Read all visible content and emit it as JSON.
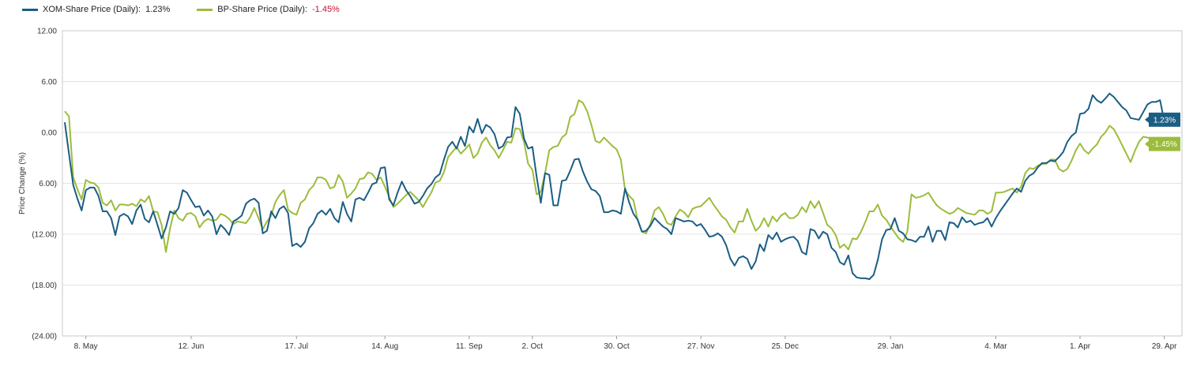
{
  "legend": {
    "xom": {
      "label": "XOM-Share Price (Daily):",
      "value": "1.23%"
    },
    "bp": {
      "label": "BP-Share Price (Daily):",
      "value": "-1.45%"
    }
  },
  "chart_data": {
    "type": "line",
    "title": "",
    "ylabel": "Price Change (%)",
    "ylim": [
      -24,
      12
    ],
    "yticks": [
      {
        "value": 12,
        "label": "12.00"
      },
      {
        "value": 6,
        "label": "6.00"
      },
      {
        "value": 0,
        "label": "0.00"
      },
      {
        "value": -6,
        "label": "6.00)"
      },
      {
        "value": -12,
        "label": "(12.00)"
      },
      {
        "value": -18,
        "label": "(18.00)"
      },
      {
        "value": -24,
        "label": "(24.00)"
      }
    ],
    "xticks": [
      {
        "index": 5,
        "label": "8. May"
      },
      {
        "index": 30,
        "label": "12. Jun"
      },
      {
        "index": 55,
        "label": "17. Jul"
      },
      {
        "index": 76,
        "label": "14. Aug"
      },
      {
        "index": 96,
        "label": "11. Sep"
      },
      {
        "index": 111,
        "label": "2. Oct"
      },
      {
        "index": 131,
        "label": "30. Oct"
      },
      {
        "index": 151,
        "label": "27. Nov"
      },
      {
        "index": 171,
        "label": "25. Dec"
      },
      {
        "index": 196,
        "label": "29. Jan"
      },
      {
        "index": 221,
        "label": "4. Mar"
      },
      {
        "index": 241,
        "label": "1. Apr"
      },
      {
        "index": 261,
        "label": "29. Apr"
      }
    ],
    "grid": true,
    "legend_position": "top-left",
    "series": [
      {
        "name": "XOM-Share Price (Daily)",
        "color": "#1b5e84",
        "end_label": "1.23%",
        "values": [
          1.2,
          -2.5,
          -6.2,
          -7.8,
          -9.2,
          -6.8,
          -6.5,
          -6.5,
          -7.5,
          -9.3,
          -9.3,
          -10.1,
          -12.1,
          -9.9,
          -9.6,
          -9.9,
          -10.8,
          -9.2,
          -8.5,
          -10.2,
          -10.6,
          -9.3,
          -10.9,
          -12.5,
          -11.2,
          -9.3,
          -9.6,
          -8.9,
          -6.8,
          -7.1,
          -8.0,
          -8.8,
          -8.7,
          -9.8,
          -9.2,
          -9.9,
          -12.0,
          -10.9,
          -11.4,
          -12.1,
          -10.5,
          -10.2,
          -9.8,
          -8.4,
          -8.0,
          -7.8,
          -8.3,
          -11.9,
          -11.6,
          -9.3,
          -10.1,
          -9.0,
          -8.7,
          -9.5,
          -13.4,
          -13.1,
          -13.5,
          -12.9,
          -11.3,
          -10.7,
          -9.6,
          -9.2,
          -9.7,
          -9.0,
          -10.1,
          -10.6,
          -8.2,
          -9.6,
          -10.5,
          -7.9,
          -7.7,
          -8.0,
          -7.1,
          -6.1,
          -5.9,
          -4.2,
          -4.1,
          -7.9,
          -8.6,
          -7.1,
          -5.8,
          -6.8,
          -7.5,
          -8.4,
          -8.2,
          -7.5,
          -6.6,
          -6.1,
          -5.3,
          -4.9,
          -3.2,
          -1.7,
          -1.1,
          -1.9,
          -0.5,
          -1.6,
          0.7,
          0.0,
          1.6,
          -0.1,
          0.9,
          0.6,
          -0.2,
          -1.9,
          -1.6,
          -0.6,
          -0.5,
          3.0,
          2.2,
          -0.7,
          -1.9,
          -1.7,
          -5.2,
          -8.3,
          -4.8,
          -5.0,
          -8.6,
          -8.6,
          -5.7,
          -5.6,
          -4.5,
          -3.2,
          -3.1,
          -4.6,
          -5.8,
          -6.7,
          -6.9,
          -7.5,
          -9.4,
          -9.4,
          -9.2,
          -9.3,
          -9.6,
          -6.6,
          -8.3,
          -9.6,
          -10.3,
          -11.7,
          -11.6,
          -11.0,
          -10.1,
          -10.6,
          -11.1,
          -11.4,
          -12.0,
          -10.1,
          -10.3,
          -10.5,
          -10.4,
          -10.5,
          -11.0,
          -10.8,
          -11.5,
          -12.3,
          -12.2,
          -11.9,
          -12.3,
          -13.3,
          -14.9,
          -15.7,
          -14.8,
          -14.6,
          -14.9,
          -16.1,
          -15.2,
          -13.2,
          -14.0,
          -12.1,
          -12.6,
          -11.8,
          -12.9,
          -12.6,
          -12.4,
          -12.3,
          -12.8,
          -14.1,
          -14.4,
          -11.4,
          -11.6,
          -12.5,
          -11.7,
          -12.0,
          -13.6,
          -14.1,
          -15.3,
          -15.6,
          -14.5,
          -16.6,
          -17.1,
          -17.2,
          -17.2,
          -17.3,
          -16.8,
          -15.0,
          -12.6,
          -11.5,
          -11.4,
          -10.1,
          -11.6,
          -11.9,
          -12.6,
          -12.7,
          -12.9,
          -12.3,
          -12.3,
          -11.1,
          -12.9,
          -11.6,
          -11.6,
          -12.7,
          -10.6,
          -10.7,
          -11.2,
          -10.0,
          -10.6,
          -10.4,
          -10.9,
          -10.7,
          -10.6,
          -10.1,
          -11.1,
          -10.1,
          -9.3,
          -8.6,
          -7.9,
          -7.2,
          -6.6,
          -7.0,
          -5.7,
          -5.1,
          -4.8,
          -4.1,
          -3.6,
          -3.6,
          -3.3,
          -3.4,
          -2.9,
          -2.3,
          -1.1,
          -0.4,
          0.0,
          2.2,
          2.3,
          2.8,
          4.4,
          3.8,
          3.5,
          4.0,
          4.6,
          4.2,
          3.6,
          3.0,
          2.6,
          1.7,
          1.6,
          1.5,
          2.4,
          3.3,
          3.6,
          3.6,
          3.8,
          1.3,
          1.23
        ]
      },
      {
        "name": "BP-Share Price (Daily)",
        "color": "#9cbc3c",
        "end_label": "-1.45%",
        "values": [
          2.5,
          1.9,
          -5.3,
          -6.7,
          -7.9,
          -5.6,
          -5.9,
          -6.0,
          -6.5,
          -8.3,
          -8.6,
          -8.0,
          -9.2,
          -8.5,
          -8.5,
          -8.6,
          -8.4,
          -8.7,
          -7.9,
          -8.2,
          -7.5,
          -9.3,
          -9.4,
          -10.9,
          -14.1,
          -11.3,
          -9.2,
          -10.1,
          -10.4,
          -9.6,
          -9.5,
          -9.9,
          -11.2,
          -10.5,
          -10.2,
          -10.4,
          -10.3,
          -9.6,
          -9.8,
          -10.2,
          -10.8,
          -10.5,
          -10.6,
          -10.7,
          -10.0,
          -8.9,
          -10.1,
          -11.4,
          -10.5,
          -9.8,
          -8.2,
          -7.4,
          -6.8,
          -9.1,
          -9.5,
          -9.7,
          -8.3,
          -7.9,
          -6.8,
          -6.3,
          -5.3,
          -5.3,
          -5.6,
          -6.6,
          -6.4,
          -5.0,
          -5.8,
          -7.7,
          -7.2,
          -6.6,
          -5.5,
          -5.4,
          -4.7,
          -4.9,
          -5.6,
          -5.3,
          -6.4,
          -7.6,
          -8.8,
          -8.4,
          -7.9,
          -7.4,
          -7.0,
          -7.5,
          -8.0,
          -8.8,
          -7.9,
          -7.1,
          -5.9,
          -5.7,
          -4.7,
          -2.9,
          -2.3,
          -1.7,
          -2.5,
          -2.0,
          -1.4,
          -3.0,
          -2.5,
          -1.2,
          -0.6,
          -1.5,
          -2.1,
          -3.0,
          -2.1,
          -1.1,
          -1.2,
          0.5,
          0.4,
          -1.1,
          -3.7,
          -4.4,
          -7.3,
          -7.0,
          -4.8,
          -2.1,
          -1.7,
          -1.6,
          -0.6,
          -0.2,
          1.8,
          2.2,
          3.8,
          3.5,
          2.5,
          0.9,
          -1.0,
          -1.2,
          -0.6,
          -1.1,
          -1.6,
          -2.0,
          -3.2,
          -6.8,
          -7.5,
          -8.0,
          -10.4,
          -11.7,
          -11.9,
          -10.8,
          -9.2,
          -8.8,
          -9.6,
          -10.7,
          -10.9,
          -9.9,
          -9.1,
          -9.4,
          -10.0,
          -9.0,
          -8.8,
          -8.7,
          -8.2,
          -7.7,
          -8.5,
          -9.2,
          -9.9,
          -10.3,
          -11.2,
          -11.8,
          -10.5,
          -10.5,
          -9.0,
          -10.4,
          -11.6,
          -11.1,
          -10.1,
          -11.1,
          -9.9,
          -10.5,
          -9.8,
          -9.5,
          -10.1,
          -10.1,
          -9.7,
          -8.8,
          -9.4,
          -8.1,
          -8.9,
          -8.1,
          -9.5,
          -10.9,
          -11.3,
          -12.1,
          -13.6,
          -13.2,
          -13.8,
          -12.5,
          -12.6,
          -11.7,
          -10.6,
          -9.3,
          -9.3,
          -8.5,
          -9.8,
          -10.3,
          -11.1,
          -11.8,
          -12.5,
          -12.9,
          -11.7,
          -7.3,
          -7.7,
          -7.6,
          -7.4,
          -7.1,
          -7.9,
          -8.6,
          -9.0,
          -9.3,
          -9.6,
          -9.4,
          -8.9,
          -9.2,
          -9.5,
          -9.6,
          -9.7,
          -9.2,
          -9.2,
          -9.6,
          -9.3,
          -7.1,
          -7.1,
          -7.0,
          -6.8,
          -6.6,
          -7.1,
          -6.4,
          -4.8,
          -4.2,
          -4.3,
          -3.9,
          -3.7,
          -3.7,
          -3.2,
          -3.2,
          -4.3,
          -4.6,
          -4.3,
          -3.3,
          -2.1,
          -1.3,
          -2.1,
          -2.5,
          -1.9,
          -1.4,
          -0.5,
          0.0,
          0.8,
          0.4,
          -0.5,
          -1.5,
          -2.5,
          -3.5,
          -2.2,
          -1.1,
          -0.5,
          -0.6,
          -0.8,
          -1.2,
          -1.45
        ]
      }
    ]
  }
}
